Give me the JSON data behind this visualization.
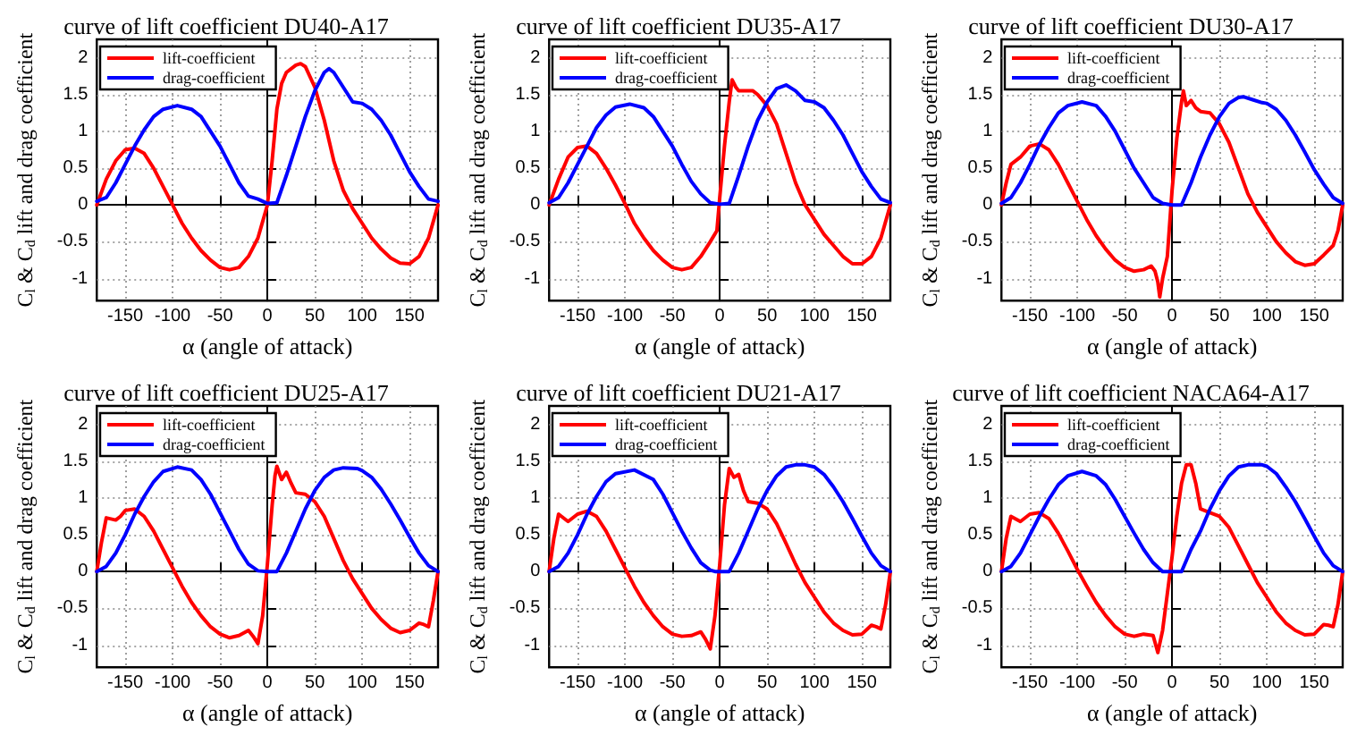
{
  "chart_data": [
    {
      "type": "line",
      "title": "curve of lift coefficient DU40-A17",
      "xlabel": "α (angle of attack)",
      "ylabel": "C$_{l}$ & C$_{d}$ lift and drag coefficient",
      "xlim": [
        -180,
        180
      ],
      "ylim": [
        -1.3,
        2.25
      ],
      "xticks": [
        -150,
        -100,
        -50,
        0,
        50,
        100,
        150
      ],
      "yticks": [
        -1,
        -0.5,
        0,
        0.5,
        1,
        1.5,
        2
      ],
      "grid": true,
      "legend": "top left",
      "marker": "none",
      "line_style": "solid",
      "series": [
        {
          "name": "lift-coefficient",
          "color": "#ff0000",
          "x": [
            -180,
            -170,
            -160,
            -150,
            -140,
            -130,
            -120,
            -110,
            -100,
            -90,
            -80,
            -70,
            -60,
            -50,
            -40,
            -30,
            -20,
            -10,
            0,
            5,
            10,
            15,
            20,
            30,
            35,
            40,
            50,
            60,
            70,
            80,
            90,
            100,
            110,
            120,
            130,
            140,
            150,
            160,
            170,
            180
          ],
          "values": [
            0,
            0.35,
            0.6,
            0.75,
            0.77,
            0.7,
            0.5,
            0.25,
            0,
            -0.25,
            -0.45,
            -0.62,
            -0.75,
            -0.85,
            -0.88,
            -0.85,
            -0.7,
            -0.45,
            0,
            0.6,
            1.3,
            1.65,
            1.8,
            1.9,
            1.92,
            1.88,
            1.6,
            1.15,
            0.6,
            0.2,
            -0.05,
            -0.25,
            -0.45,
            -0.6,
            -0.72,
            -0.79,
            -0.8,
            -0.7,
            -0.45,
            0
          ]
        },
        {
          "name": "drag-coefficient",
          "color": "#0000ff",
          "x": [
            -180,
            -170,
            -160,
            -150,
            -140,
            -130,
            -120,
            -110,
            -95,
            -80,
            -70,
            -60,
            -50,
            -40,
            -30,
            -20,
            -10,
            -5,
            0,
            10,
            20,
            30,
            40,
            50,
            60,
            65,
            70,
            80,
            90,
            100,
            110,
            120,
            130,
            140,
            150,
            160,
            170,
            180
          ],
          "values": [
            0.05,
            0.1,
            0.3,
            0.55,
            0.8,
            1.02,
            1.2,
            1.3,
            1.35,
            1.3,
            1.2,
            1,
            0.8,
            0.55,
            0.3,
            0.12,
            0.08,
            0.05,
            0.02,
            0.03,
            0.4,
            0.8,
            1.2,
            1.55,
            1.8,
            1.85,
            1.8,
            1.6,
            1.4,
            1.38,
            1.3,
            1.15,
            0.95,
            0.7,
            0.45,
            0.25,
            0.08,
            0.05
          ]
        }
      ]
    },
    {
      "type": "line",
      "title": "curve of lift coefficient DU35-A17",
      "xlabel": "α (angle of attack)",
      "ylabel": "C$_{l}$ & C$_{d}$ lift and drag coefficient",
      "xlim": [
        -180,
        180
      ],
      "ylim": [
        -1.3,
        2.25
      ],
      "xticks": [
        -150,
        -100,
        -50,
        0,
        50,
        100,
        150
      ],
      "yticks": [
        -1,
        -0.5,
        0,
        0.5,
        1,
        1.5,
        2
      ],
      "grid": true,
      "legend": "top left",
      "marker": "none",
      "line_style": "solid",
      "series": [
        {
          "name": "lift-coefficient",
          "color": "#ff0000",
          "x": [
            -180,
            -170,
            -160,
            -150,
            -140,
            -130,
            -120,
            -110,
            -100,
            -90,
            -80,
            -70,
            -60,
            -50,
            -40,
            -30,
            -20,
            -10,
            -3,
            0,
            5,
            10,
            13,
            17,
            20,
            30,
            35,
            40,
            50,
            60,
            70,
            80,
            90,
            100,
            110,
            120,
            130,
            140,
            150,
            160,
            170,
            180
          ],
          "values": [
            0,
            0.35,
            0.65,
            0.78,
            0.8,
            0.7,
            0.5,
            0.27,
            0.02,
            -0.25,
            -0.45,
            -0.62,
            -0.75,
            -0.85,
            -0.88,
            -0.85,
            -0.7,
            -0.5,
            -0.35,
            0.1,
            0.8,
            1.4,
            1.7,
            1.6,
            1.55,
            1.55,
            1.55,
            1.5,
            1.35,
            1.1,
            0.7,
            0.3,
            0,
            -0.2,
            -0.4,
            -0.55,
            -0.7,
            -0.8,
            -0.8,
            -0.7,
            -0.45,
            0
          ]
        },
        {
          "name": "drag-coefficient",
          "color": "#0000ff",
          "x": [
            -180,
            -170,
            -160,
            -150,
            -140,
            -130,
            -120,
            -110,
            -95,
            -80,
            -70,
            -60,
            -50,
            -40,
            -30,
            -20,
            -10,
            0,
            10,
            20,
            30,
            40,
            50,
            60,
            70,
            80,
            90,
            100,
            110,
            120,
            130,
            140,
            150,
            160,
            170,
            180
          ],
          "values": [
            0.03,
            0.1,
            0.3,
            0.55,
            0.8,
            1.05,
            1.22,
            1.33,
            1.37,
            1.32,
            1.2,
            1,
            0.8,
            0.55,
            0.32,
            0.15,
            0.03,
            0.01,
            0.02,
            0.4,
            0.8,
            1.15,
            1.4,
            1.58,
            1.63,
            1.55,
            1.42,
            1.4,
            1.32,
            1.15,
            0.95,
            0.7,
            0.45,
            0.25,
            0.08,
            0.03
          ]
        }
      ]
    },
    {
      "type": "line",
      "title": "curve of lift coefficient DU30-A17",
      "xlabel": "α (angle of attack)",
      "ylabel": "C$_{l}$ & C$_{d}$ lift and drag coefficient",
      "xlim": [
        -180,
        180
      ],
      "ylim": [
        -1.3,
        2.25
      ],
      "xticks": [
        -150,
        -100,
        -50,
        0,
        50,
        100,
        150
      ],
      "yticks": [
        -1,
        -0.5,
        0,
        0.5,
        1,
        1.5,
        2
      ],
      "grid": true,
      "legend": "top left",
      "marker": "none",
      "line_style": "solid",
      "series": [
        {
          "name": "lift-coefficient",
          "color": "#ff0000",
          "x": [
            -180,
            -175,
            -170,
            -160,
            -150,
            -140,
            -130,
            -120,
            -110,
            -100,
            -90,
            -80,
            -70,
            -60,
            -50,
            -40,
            -30,
            -22,
            -18,
            -15,
            -13,
            -10,
            -5,
            0,
            5,
            10,
            12,
            15,
            20,
            25,
            30,
            40,
            50,
            60,
            70,
            80,
            90,
            100,
            110,
            120,
            130,
            140,
            150,
            160,
            170,
            175,
            180
          ],
          "values": [
            0,
            0.3,
            0.55,
            0.65,
            0.8,
            0.83,
            0.75,
            0.55,
            0.3,
            0.05,
            -0.2,
            -0.42,
            -0.6,
            -0.75,
            -0.85,
            -0.9,
            -0.88,
            -0.83,
            -0.9,
            -1.05,
            -1.25,
            -1,
            -0.7,
            0.2,
            0.9,
            1.4,
            1.55,
            1.35,
            1.42,
            1.32,
            1.27,
            1.25,
            1.1,
            0.85,
            0.5,
            0.15,
            -0.1,
            -0.3,
            -0.5,
            -0.65,
            -0.77,
            -0.82,
            -0.8,
            -0.68,
            -0.55,
            -0.35,
            0
          ]
        },
        {
          "name": "drag-coefficient",
          "color": "#0000ff",
          "x": [
            -180,
            -170,
            -160,
            -150,
            -140,
            -130,
            -120,
            -110,
            -95,
            -80,
            -70,
            -60,
            -50,
            -40,
            -30,
            -20,
            -10,
            0,
            10,
            20,
            30,
            40,
            50,
            60,
            70,
            75,
            85,
            95,
            100,
            110,
            120,
            130,
            140,
            150,
            160,
            170,
            180
          ],
          "values": [
            0.02,
            0.1,
            0.3,
            0.55,
            0.82,
            1.05,
            1.25,
            1.35,
            1.4,
            1.35,
            1.2,
            1,
            0.75,
            0.5,
            0.3,
            0.1,
            0.02,
            0,
            0,
            0.3,
            0.65,
            0.95,
            1.2,
            1.38,
            1.46,
            1.47,
            1.43,
            1.39,
            1.38,
            1.3,
            1.15,
            0.95,
            0.72,
            0.48,
            0.28,
            0.1,
            0.02
          ]
        }
      ]
    },
    {
      "type": "line",
      "title": "curve of lift coefficient DU25-A17",
      "xlabel": "α (angle of attack)",
      "ylabel": "C$_{l}$ & C$_{d}$ lift and drag coefficient",
      "xlim": [
        -180,
        180
      ],
      "ylim": [
        -1.3,
        2.25
      ],
      "xticks": [
        -150,
        -100,
        -50,
        0,
        50,
        100,
        150
      ],
      "yticks": [
        -1,
        -0.5,
        0,
        0.5,
        1,
        1.5,
        2
      ],
      "grid": true,
      "legend": "top left",
      "marker": "none",
      "line_style": "solid",
      "series": [
        {
          "name": "lift-coefficient",
          "color": "#ff0000",
          "x": [
            -180,
            -175,
            -170,
            -160,
            -155,
            -150,
            -140,
            -130,
            -120,
            -110,
            -100,
            -90,
            -80,
            -70,
            -60,
            -50,
            -40,
            -30,
            -20,
            -15,
            -10,
            -5,
            0,
            5,
            8,
            10,
            15,
            20,
            25,
            30,
            40,
            50,
            60,
            70,
            80,
            90,
            100,
            110,
            120,
            130,
            140,
            150,
            160,
            165,
            170,
            175,
            180
          ],
          "values": [
            0,
            0.4,
            0.73,
            0.7,
            0.75,
            0.83,
            0.85,
            0.75,
            0.55,
            0.3,
            0.05,
            -0.2,
            -0.42,
            -0.6,
            -0.75,
            -0.85,
            -0.9,
            -0.87,
            -0.8,
            -0.88,
            -0.98,
            -0.6,
            0.1,
            0.9,
            1.3,
            1.43,
            1.25,
            1.35,
            1.2,
            1.07,
            1.05,
            0.95,
            0.75,
            0.45,
            0.15,
            -0.1,
            -0.3,
            -0.5,
            -0.65,
            -0.77,
            -0.83,
            -0.8,
            -0.7,
            -0.72,
            -0.75,
            -0.4,
            0
          ]
        },
        {
          "name": "drag-coefficient",
          "color": "#0000ff",
          "x": [
            -180,
            -170,
            -160,
            -150,
            -140,
            -130,
            -120,
            -110,
            -95,
            -80,
            -70,
            -60,
            -50,
            -40,
            -30,
            -20,
            -10,
            0,
            10,
            20,
            30,
            40,
            50,
            60,
            70,
            80,
            95,
            100,
            110,
            120,
            130,
            140,
            150,
            160,
            170,
            180
          ],
          "values": [
            0,
            0.07,
            0.25,
            0.5,
            0.78,
            1.02,
            1.22,
            1.36,
            1.42,
            1.38,
            1.25,
            1.05,
            0.8,
            0.55,
            0.3,
            0.1,
            0.01,
            0,
            0,
            0.25,
            0.55,
            0.85,
            1.1,
            1.28,
            1.38,
            1.41,
            1.4,
            1.37,
            1.28,
            1.12,
            0.92,
            0.7,
            0.47,
            0.25,
            0.08,
            0
          ]
        }
      ]
    },
    {
      "type": "line",
      "title": "curve of lift coefficient DU21-A17",
      "xlabel": "α (angle of attack)",
      "ylabel": "C$_{l}$ & C$_{d}$ lift and drag coefficient",
      "xlim": [
        -180,
        180
      ],
      "ylim": [
        -1.3,
        2.25
      ],
      "xticks": [
        -150,
        -100,
        -50,
        0,
        50,
        100,
        150
      ],
      "yticks": [
        -1,
        -0.5,
        0,
        0.5,
        1,
        1.5,
        2
      ],
      "grid": true,
      "legend": "top left",
      "marker": "none",
      "line_style": "solid",
      "series": [
        {
          "name": "lift-coefficient",
          "color": "#ff0000",
          "x": [
            -180,
            -175,
            -170,
            -160,
            -150,
            -140,
            -130,
            -120,
            -110,
            -100,
            -90,
            -80,
            -70,
            -60,
            -50,
            -40,
            -30,
            -20,
            -15,
            -10,
            -5,
            0,
            5,
            10,
            15,
            20,
            25,
            30,
            40,
            50,
            60,
            70,
            80,
            90,
            100,
            110,
            120,
            130,
            140,
            150,
            160,
            165,
            170,
            175,
            180
          ],
          "values": [
            0,
            0.45,
            0.78,
            0.68,
            0.78,
            0.82,
            0.75,
            0.55,
            0.3,
            0.05,
            -0.2,
            -0.42,
            -0.6,
            -0.75,
            -0.85,
            -0.88,
            -0.87,
            -0.82,
            -0.92,
            -1.05,
            -0.6,
            0.1,
            0.9,
            1.4,
            1.28,
            1.32,
            1.1,
            0.95,
            0.93,
            0.85,
            0.65,
            0.38,
            0.1,
            -0.15,
            -0.35,
            -0.55,
            -0.7,
            -0.8,
            -0.86,
            -0.85,
            -0.73,
            -0.75,
            -0.78,
            -0.45,
            0
          ]
        },
        {
          "name": "drag-coefficient",
          "color": "#0000ff",
          "x": [
            -180,
            -170,
            -160,
            -150,
            -140,
            -130,
            -120,
            -110,
            -90,
            -70,
            -60,
            -50,
            -40,
            -30,
            -20,
            -10,
            -5,
            0,
            10,
            20,
            30,
            40,
            50,
            60,
            70,
            80,
            90,
            100,
            110,
            120,
            130,
            140,
            150,
            160,
            170,
            180
          ],
          "values": [
            0,
            0.07,
            0.25,
            0.5,
            0.78,
            1.02,
            1.22,
            1.33,
            1.38,
            1.25,
            1.05,
            0.8,
            0.55,
            0.32,
            0.12,
            0.02,
            0,
            0,
            0,
            0.25,
            0.55,
            0.85,
            1.1,
            1.3,
            1.42,
            1.45,
            1.45,
            1.42,
            1.32,
            1.15,
            0.95,
            0.72,
            0.48,
            0.25,
            0.08,
            0
          ]
        }
      ]
    },
    {
      "type": "line",
      "title": "curve of lift coefficient NACA64-A17",
      "xlabel": "α (angle of attack)",
      "ylabel": "C$_{l}$ & C$_{d}$ lift and drag coefficient",
      "xlim": [
        -180,
        180
      ],
      "ylim": [
        -1.3,
        2.25
      ],
      "xticks": [
        -150,
        -100,
        -50,
        0,
        50,
        100,
        150
      ],
      "yticks": [
        -1,
        -0.5,
        0,
        0.5,
        1,
        1.5,
        2
      ],
      "grid": true,
      "legend": "top left",
      "marker": "none",
      "line_style": "solid",
      "series": [
        {
          "name": "lift-coefficient",
          "color": "#ff0000",
          "x": [
            -180,
            -175,
            -170,
            -160,
            -150,
            -140,
            -130,
            -120,
            -110,
            -100,
            -90,
            -80,
            -70,
            -60,
            -50,
            -40,
            -30,
            -20,
            -15,
            -10,
            -5,
            0,
            5,
            10,
            15,
            20,
            25,
            30,
            40,
            50,
            60,
            70,
            80,
            90,
            100,
            110,
            120,
            130,
            140,
            150,
            160,
            165,
            170,
            175,
            180
          ],
          "values": [
            0,
            0.45,
            0.75,
            0.68,
            0.78,
            0.8,
            0.72,
            0.52,
            0.28,
            0.03,
            -0.2,
            -0.42,
            -0.6,
            -0.75,
            -0.85,
            -0.88,
            -0.85,
            -0.87,
            -1.1,
            -0.8,
            -0.3,
            0.2,
            0.75,
            1.2,
            1.45,
            1.45,
            1.2,
            0.85,
            0.8,
            0.75,
            0.6,
            0.35,
            0.1,
            -0.15,
            -0.35,
            -0.55,
            -0.7,
            -0.8,
            -0.86,
            -0.85,
            -0.72,
            -0.73,
            -0.75,
            -0.45,
            0
          ]
        },
        {
          "name": "drag-coefficient",
          "color": "#0000ff",
          "x": [
            -180,
            -170,
            -160,
            -150,
            -140,
            -130,
            -120,
            -110,
            -95,
            -80,
            -70,
            -60,
            -50,
            -40,
            -30,
            -20,
            -10,
            0,
            10,
            20,
            30,
            40,
            50,
            60,
            70,
            80,
            95,
            100,
            110,
            120,
            130,
            140,
            150,
            160,
            170,
            180
          ],
          "values": [
            0,
            0.07,
            0.25,
            0.5,
            0.75,
            0.98,
            1.18,
            1.3,
            1.36,
            1.3,
            1.18,
            0.98,
            0.75,
            0.52,
            0.3,
            0.12,
            0,
            0,
            0,
            0.3,
            0.55,
            0.85,
            1.1,
            1.3,
            1.42,
            1.45,
            1.45,
            1.43,
            1.33,
            1.15,
            0.95,
            0.72,
            0.48,
            0.25,
            0.08,
            0
          ]
        }
      ]
    }
  ]
}
